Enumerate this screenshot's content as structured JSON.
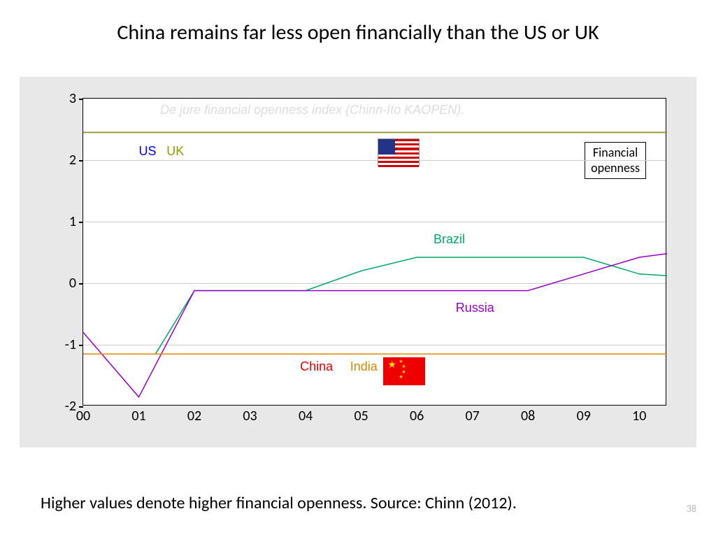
{
  "title": "China remains far less open financially than the US or UK",
  "caption": "Higher values denote higher financial openness.   Source: Chinn (2012).",
  "page_number": "38",
  "chart": {
    "type": "line",
    "background_color": "#e8e8e8",
    "plot_background": "#ffffff",
    "grid_color": "#cccccc",
    "border_color": "#000000",
    "watermark_text": "De jure financial openness index (Chinn-Ito KAOPEN).",
    "watermark_color": "#dddddd",
    "ylim": [
      -2,
      3
    ],
    "ytick_step": 1,
    "yticks": [
      -2,
      -1,
      0,
      1,
      2,
      3
    ],
    "xlim": [
      0,
      10.5
    ],
    "xticks": [
      0,
      1,
      2,
      3,
      4,
      5,
      6,
      7,
      8,
      9,
      10
    ],
    "xtick_labels": [
      "00",
      "01",
      "02",
      "03",
      "04",
      "05",
      "06",
      "07",
      "08",
      "09",
      "10"
    ],
    "tick_fontsize": 20,
    "label_fontsize": 18,
    "line_width": 1.5,
    "legend_box": {
      "text_line1": "Financial",
      "text_line2": "openness",
      "x": 0.83,
      "y_top": 0.14,
      "border_color": "#000000",
      "fontsize": 18
    },
    "series": {
      "us": {
        "label": "US",
        "color": "#0000ee",
        "x": [
          0,
          10.5
        ],
        "y": [
          2.45,
          2.45
        ],
        "label_pos_x": 1.0,
        "label_pos_y": 2.15
      },
      "uk": {
        "label": "UK",
        "color": "#999900",
        "x": [
          0,
          10.5
        ],
        "y": [
          2.45,
          2.45
        ],
        "label_pos_x": 1.5,
        "label_pos_y": 2.15
      },
      "brazil": {
        "label": "Brazil",
        "color": "#00aa66",
        "x": [
          0,
          0.3,
          1.3,
          2,
          4,
          5,
          6,
          9,
          10,
          10.5
        ],
        "y": [
          -1.15,
          -1.15,
          -1.15,
          -0.12,
          -0.12,
          0.2,
          0.42,
          0.42,
          0.15,
          0.12
        ],
        "label_pos_x": 6.3,
        "label_pos_y": 0.72
      },
      "russia": {
        "label": "Russia",
        "color": "#9900cc",
        "x": [
          0,
          1,
          2,
          4,
          8,
          9,
          10,
          10.5
        ],
        "y": [
          -0.8,
          -1.85,
          -0.12,
          -0.12,
          -0.12,
          0.15,
          0.42,
          0.48
        ],
        "label_pos_x": 6.7,
        "label_pos_y": -0.4
      },
      "china": {
        "label": "China",
        "color": "#ee0000",
        "x": [
          0,
          10.5
        ],
        "y": [
          -1.15,
          -1.15
        ],
        "label_pos_x": 3.9,
        "label_pos_y": -1.35
      },
      "india": {
        "label": "India",
        "color": "#dd8800",
        "x": [
          0,
          10.5
        ],
        "y": [
          -1.15,
          -1.15
        ],
        "label_pos_x": 4.8,
        "label_pos_y": -1.35
      }
    },
    "flags": {
      "us": {
        "x": 5.3,
        "y_top": 2.35
      },
      "china": {
        "x": 5.4,
        "y_top": -1.2
      }
    }
  },
  "title_fontsize": 30,
  "caption_fontsize": 24
}
